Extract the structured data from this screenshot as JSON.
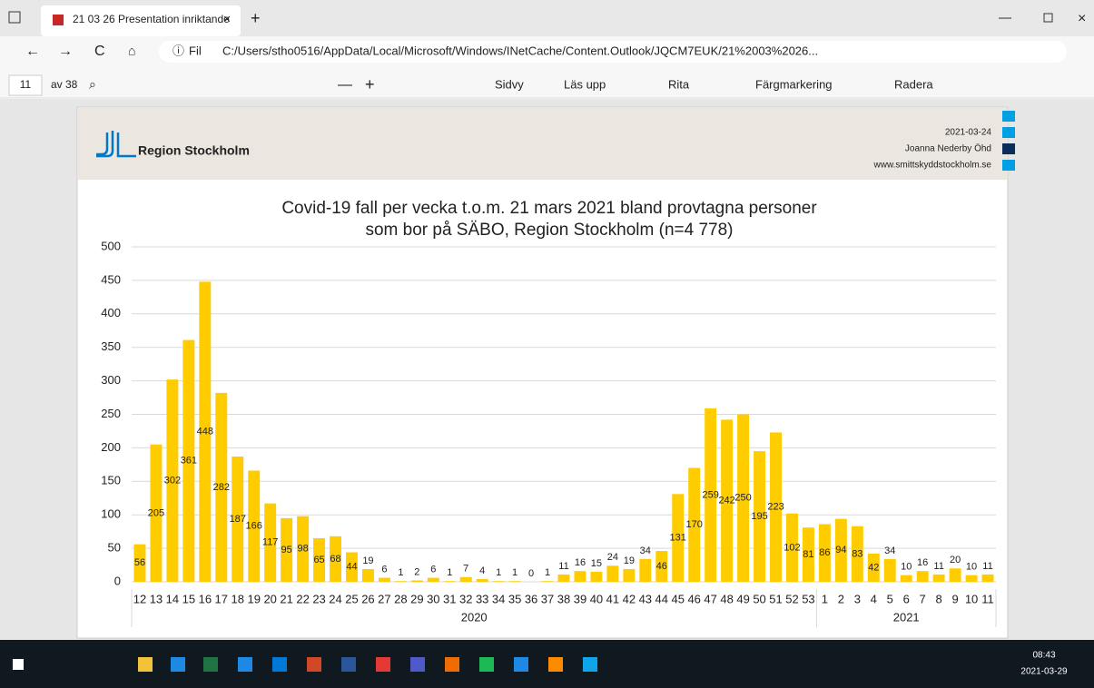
{
  "browser": {
    "tab_title": "21 03 26 Presentation inriktande",
    "address_prefix": "Fil",
    "url": "C:/Users/stho0516/AppData/Local/Microsoft/Windows/INetCache/Content.Outlook/JQCM7EUK/21%2003%2026..."
  },
  "pdf_toolbar": {
    "page": "11",
    "page_count": "av 38",
    "buttons": [
      "Sidvy",
      "Läs upp",
      "Rita",
      "Färgmarkering",
      "Radera"
    ]
  },
  "header": {
    "logo": "Region Stockholm",
    "date": "2021-03-24",
    "author": "Joanna Nederby Öhd",
    "website": "www.smittskyddstockholm.se"
  },
  "chart_data": {
    "type": "bar",
    "title": [
      "Covid-19 fall per vecka t.o.m. 21 mars 2021 bland provtagna personer",
      "som bor på SÄBO, Region Stockholm (n=4 778)"
    ],
    "categories": [
      "12",
      "13",
      "14",
      "15",
      "16",
      "17",
      "18",
      "19",
      "20",
      "21",
      "22",
      "23",
      "24",
      "25",
      "26",
      "27",
      "28",
      "29",
      "30",
      "31",
      "32",
      "33",
      "34",
      "35",
      "36",
      "37",
      "38",
      "39",
      "40",
      "41",
      "42",
      "43",
      "44",
      "45",
      "46",
      "47",
      "48",
      "49",
      "50",
      "51",
      "52",
      "53",
      "1",
      "2",
      "3",
      "4",
      "5",
      "6",
      "7",
      "8",
      "9",
      "10",
      "11"
    ],
    "values": [
      56,
      205,
      302,
      361,
      448,
      282,
      187,
      166,
      117,
      95,
      98,
      65,
      68,
      44,
      19,
      6,
      1,
      2,
      6,
      1,
      7,
      4,
      1,
      1,
      0,
      1,
      11,
      16,
      15,
      24,
      19,
      34,
      46,
      131,
      170,
      259,
      242,
      250,
      195,
      223,
      102,
      81,
      86,
      94,
      83,
      42,
      34,
      10,
      16,
      11,
      20,
      10,
      11
    ],
    "group_labels": [
      "2020",
      "2021"
    ],
    "color": "#ffcc00",
    "ylim": [
      0,
      500
    ],
    "yticks": [
      0,
      50,
      100,
      150,
      200,
      250,
      300,
      350,
      400,
      450,
      500
    ],
    "grid": true
  },
  "taskbar": {
    "time": "08:43",
    "date": "2021-03-29"
  }
}
